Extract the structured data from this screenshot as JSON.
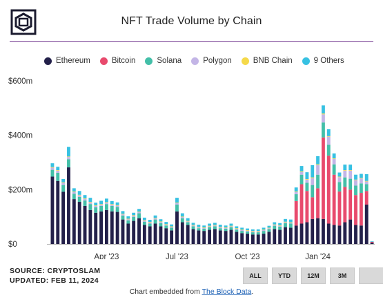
{
  "header": {
    "title": "NFT Trade Volume by Chain"
  },
  "footer": {
    "source": "SOURCE: CRYPTOSLAM",
    "updated": "UPDATED: FEB 11, 2024",
    "embed_prefix": "Chart embedded from ",
    "embed_link": "The Block Data",
    "embed_suffix": "."
  },
  "range_buttons": [
    "ALL",
    "YTD",
    "12M",
    "3M",
    ""
  ],
  "colors": {
    "Ethereum": "#23204a",
    "Bitcoin": "#e84a6d",
    "Solana": "#43bfa8",
    "Polygon": "#c3b5e6",
    "BNB Chain": "#f5d94a",
    "9 Others": "#37c1e2",
    "axis_text": "#333333",
    "accent_rule": "#6b2d8a"
  },
  "chart_data": {
    "type": "bar",
    "stacked": true,
    "title": "NFT Trade Volume by Chain",
    "ylim": [
      0,
      600
    ],
    "y_ticks": [
      0,
      200,
      400,
      600
    ],
    "y_tick_labels": [
      "$0",
      "$200m",
      "$400m",
      "$600m"
    ],
    "x_tick_labels": [
      {
        "label": "Apr '23",
        "week": 10
      },
      {
        "label": "Jul '23",
        "week": 23
      },
      {
        "label": "Oct '23",
        "week": 36
      },
      {
        "label": "Jan '24",
        "week": 49
      }
    ],
    "legend_position": "top",
    "series": [
      {
        "name": "Ethereum",
        "values": [
          248,
          232,
          192,
          282,
          165,
          155,
          140,
          125,
          115,
          120,
          125,
          120,
          118,
          90,
          75,
          85,
          95,
          70,
          65,
          75,
          65,
          58,
          50,
          120,
          80,
          70,
          55,
          50,
          48,
          52,
          55,
          50,
          48,
          52,
          45,
          40,
          38,
          35,
          35,
          38,
          45,
          55,
          52,
          62,
          60,
          68,
          75,
          80,
          92,
          95,
          92,
          75,
          70,
          68,
          80,
          90,
          70,
          68,
          145,
          5
        ]
      },
      {
        "name": "Bitcoin",
        "values": [
          0,
          0,
          0,
          0,
          0,
          0,
          0,
          0,
          0,
          0,
          0,
          0,
          0,
          0,
          0,
          0,
          0,
          0,
          0,
          0,
          0,
          0,
          0,
          0,
          0,
          0,
          0,
          0,
          0,
          0,
          0,
          0,
          0,
          0,
          0,
          0,
          0,
          0,
          0,
          0,
          0,
          0,
          0,
          0,
          0,
          90,
          145,
          115,
          80,
          110,
          300,
          250,
          185,
          125,
          130,
          110,
          110,
          120,
          50,
          3
        ]
      },
      {
        "name": "Solana",
        "values": [
          25,
          30,
          25,
          30,
          20,
          18,
          20,
          22,
          20,
          20,
          22,
          20,
          18,
          15,
          12,
          15,
          18,
          12,
          10,
          15,
          12,
          10,
          10,
          25,
          15,
          10,
          10,
          8,
          8,
          10,
          10,
          8,
          8,
          10,
          8,
          8,
          8,
          8,
          8,
          10,
          10,
          12,
          12,
          15,
          15,
          25,
          35,
          30,
          45,
          50,
          55,
          40,
          38,
          35,
          35,
          40,
          35,
          35,
          25,
          0
        ]
      },
      {
        "name": "Polygon",
        "values": [
          8,
          8,
          8,
          8,
          6,
          6,
          6,
          6,
          5,
          5,
          5,
          5,
          5,
          4,
          4,
          4,
          4,
          4,
          4,
          4,
          4,
          3,
          3,
          5,
          4,
          3,
          3,
          3,
          3,
          3,
          3,
          3,
          3,
          3,
          3,
          3,
          3,
          3,
          3,
          3,
          3,
          3,
          3,
          3,
          3,
          8,
          10,
          12,
          25,
          35,
          30,
          30,
          20,
          18,
          25,
          30,
          20,
          18,
          10,
          0
        ]
      },
      {
        "name": "BNB Chain",
        "values": [
          2,
          2,
          2,
          2,
          2,
          2,
          2,
          2,
          2,
          2,
          2,
          2,
          2,
          2,
          2,
          2,
          2,
          2,
          2,
          2,
          2,
          2,
          2,
          2,
          2,
          2,
          2,
          2,
          2,
          2,
          2,
          2,
          2,
          2,
          2,
          2,
          2,
          2,
          2,
          2,
          2,
          2,
          2,
          2,
          2,
          2,
          2,
          2,
          3,
          3,
          3,
          2,
          2,
          2,
          2,
          2,
          2,
          2,
          2,
          0
        ]
      },
      {
        "name": "9 Others",
        "values": [
          14,
          12,
          12,
          35,
          12,
          14,
          12,
          15,
          10,
          12,
          13,
          11,
          10,
          10,
          9,
          9,
          10,
          9,
          8,
          9,
          8,
          8,
          7,
          18,
          12,
          10,
          8,
          8,
          7,
          8,
          8,
          8,
          7,
          8,
          7,
          7,
          6,
          6,
          6,
          7,
          7,
          8,
          8,
          10,
          10,
          15,
          20,
          25,
          45,
          30,
          30,
          25,
          18,
          15,
          20,
          20,
          18,
          15,
          25,
          2
        ]
      }
    ]
  }
}
